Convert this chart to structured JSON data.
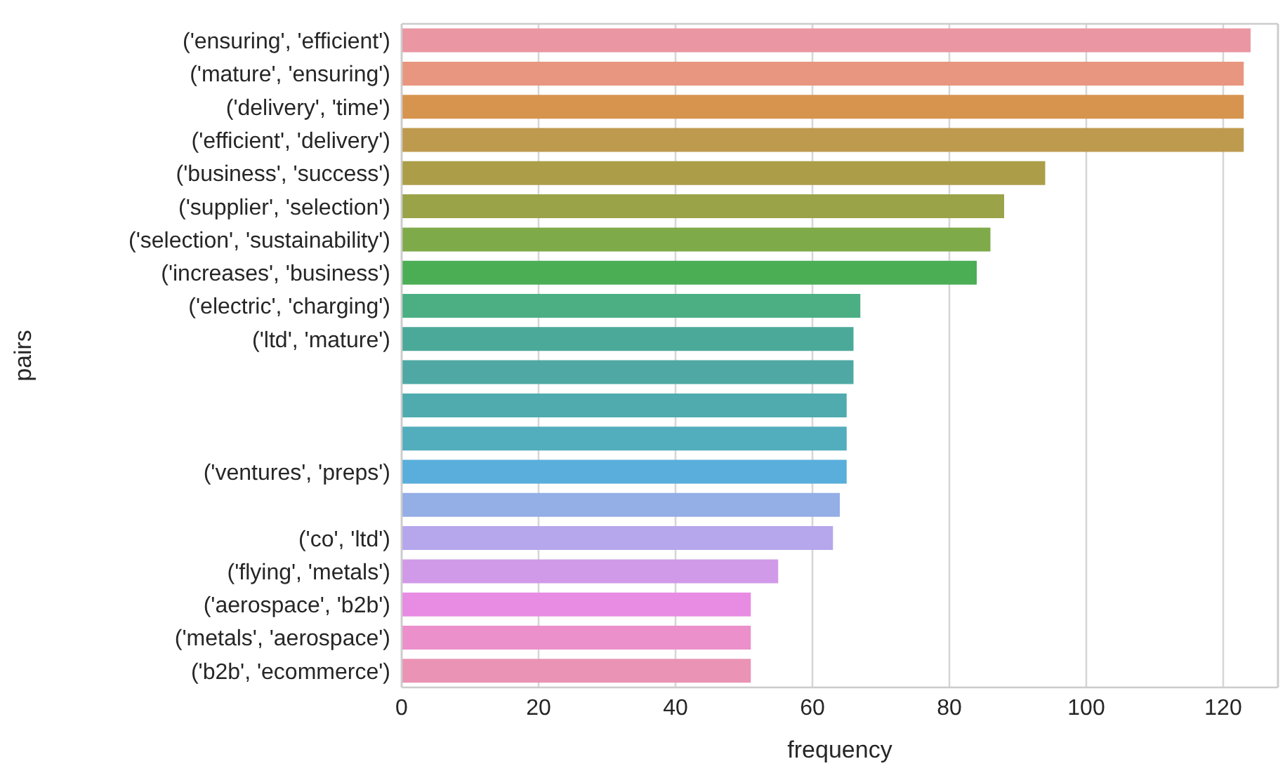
{
  "chart_data": {
    "type": "bar",
    "orientation": "horizontal",
    "xlabel": "frequency",
    "ylabel": "pairs",
    "categories": [
      "('ensuring', 'efficient')",
      "('mature', 'ensuring')",
      "('delivery', 'time')",
      "('efficient', 'delivery')",
      "('business', 'success')",
      "('supplier', 'selection')",
      "('selection', 'sustainability')",
      "('increases', 'business')",
      "('electric', 'charging')",
      "('ltd', 'mature')",
      null,
      null,
      null,
      "('ventures', 'preps')",
      null,
      "('co', 'ltd')",
      "('flying', 'metals')",
      "('aerospace', 'b2b')",
      "('metals', 'aerospace')",
      "('b2b', 'ecommerce')"
    ],
    "values": [
      124,
      123,
      123,
      123,
      94,
      88,
      86,
      84,
      67,
      66,
      66,
      65,
      65,
      65,
      64,
      63,
      55,
      51,
      51,
      51
    ],
    "colors": [
      "#ea96a3",
      "#e8967f",
      "#d7944f",
      "#be9a4e",
      "#ac9e48",
      "#9aa348",
      "#7faa4a",
      "#4bae55",
      "#4caf84",
      "#4ba99a",
      "#4fa8a3",
      "#4fabae",
      "#52adbd",
      "#59aedb",
      "#94aee6",
      "#b6a6ec",
      "#d19ae8",
      "#e88be3",
      "#eb90ca",
      "#ea93b4"
    ],
    "xlim": [
      0,
      128
    ],
    "xticks": [
      0,
      20,
      40,
      60,
      80,
      100,
      120
    ],
    "grid": "x"
  }
}
